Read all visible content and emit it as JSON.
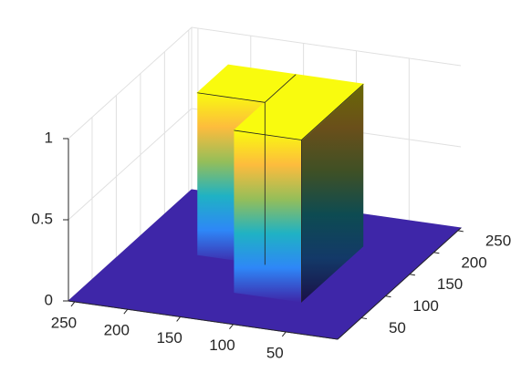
{
  "chart_data": {
    "type": "surface",
    "xlim": [
      1,
      256
    ],
    "ylim": [
      1,
      256
    ],
    "zlim": [
      0,
      1
    ],
    "xticks": [
      50,
      100,
      150,
      200,
      250
    ],
    "yticks": [
      50,
      100,
      150,
      200,
      250
    ],
    "zticks": [
      0,
      0.5,
      1
    ],
    "base_z": 0,
    "regions": [
      {
        "x": [
          64,
          192
        ],
        "y": [
          64,
          128
        ],
        "z": 1
      },
      {
        "x": [
          128,
          192
        ],
        "y": [
          128,
          192
        ],
        "z": 1
      }
    ],
    "colormap": [
      "#3e26a8",
      "#2e87f7",
      "#1fb2c4",
      "#95be59",
      "#fdbc3d",
      "#f9fb0e"
    ],
    "grid": true
  }
}
